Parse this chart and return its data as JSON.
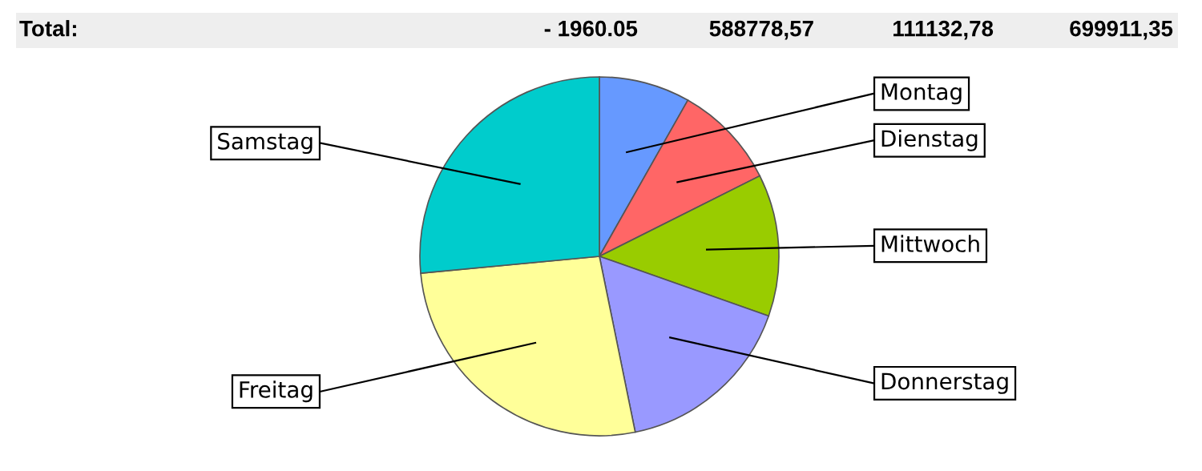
{
  "chart_data": {
    "type": "pie",
    "categories": [
      "Montag",
      "Dienstag",
      "Mittwoch",
      "Donnerstag",
      "Freitag",
      "Samstag"
    ],
    "values": [
      8.2,
      9.4,
      12.8,
      16.4,
      26.7,
      26.5
    ],
    "colors": [
      "#6699ff",
      "#ff6666",
      "#99cc00",
      "#9999ff",
      "#ffff99",
      "#00cccc"
    ],
    "annotations": [
      "Total:",
      "- 1960.05",
      "588778,57",
      "111132,78",
      "699911,35"
    ]
  }
}
